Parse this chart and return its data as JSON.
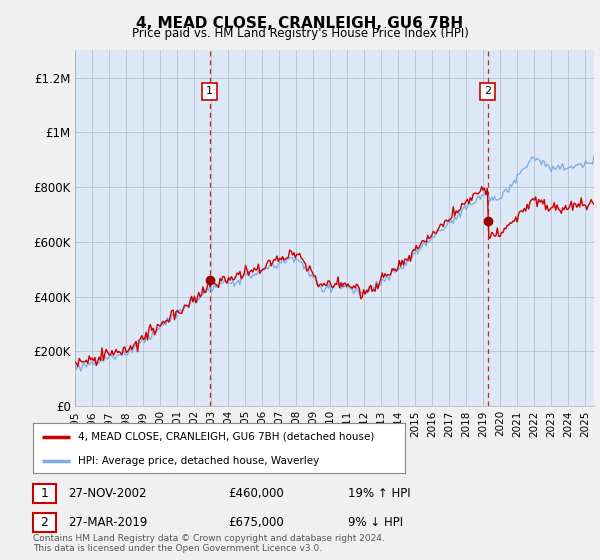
{
  "title": "4, MEAD CLOSE, CRANLEIGH, GU6 7BH",
  "subtitle": "Price paid vs. HM Land Registry's House Price Index (HPI)",
  "legend_line1": "4, MEAD CLOSE, CRANLEIGH, GU6 7BH (detached house)",
  "legend_line2": "HPI: Average price, detached house, Waverley",
  "annotation1_date": "27-NOV-2002",
  "annotation1_price": "£460,000",
  "annotation1_hpi": "19% ↑ HPI",
  "annotation2_date": "27-MAR-2019",
  "annotation2_price": "£675,000",
  "annotation2_hpi": "9% ↓ HPI",
  "footer": "Contains HM Land Registry data © Crown copyright and database right 2024.\nThis data is licensed under the Open Government Licence v3.0.",
  "hpi_color": "#7aade0",
  "price_color": "#cc0000",
  "vline_color": "#cc0000",
  "bg_color": "#f0f0f0",
  "plot_bg": "#dce8f5",
  "ylim": [
    0,
    1300000
  ],
  "yticks": [
    0,
    200000,
    400000,
    600000,
    800000,
    1000000,
    1200000
  ],
  "ytick_labels": [
    "£0",
    "£200K",
    "£400K",
    "£600K",
    "£800K",
    "£1M",
    "£1.2M"
  ],
  "sale1_t": 2002.917,
  "sale2_t": 2019.25,
  "price_sale1": 460000,
  "price_sale2": 675000
}
